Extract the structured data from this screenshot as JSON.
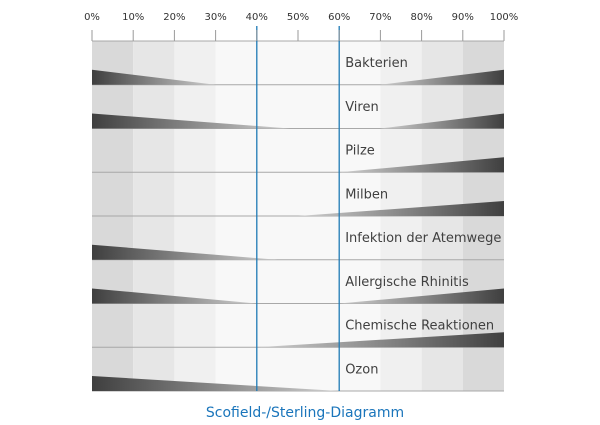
{
  "chart_data": {
    "type": "scofield-sterling",
    "title": "Scofield-/Sterling-Diagramm",
    "x_ticks": [
      "0%",
      "10%",
      "20%",
      "30%",
      "40%",
      "50%",
      "60%",
      "70%",
      "80%",
      "90%",
      "100%"
    ],
    "xlim": [
      0,
      100
    ],
    "optimal_range": [
      40,
      60
    ],
    "rows": [
      {
        "label": "Bakterien",
        "left_to": 30,
        "right_from": 70
      },
      {
        "label": "Viren",
        "left_to": 48,
        "right_from": 70
      },
      {
        "label": "Pilze",
        "left_to": 0,
        "right_from": 60
      },
      {
        "label": "Milben",
        "left_to": 0,
        "right_from": 50
      },
      {
        "label": "Infektion der Atemwege",
        "left_to": 45,
        "right_from": 100
      },
      {
        "label": "Allergische Rhinitis",
        "left_to": 40,
        "right_from": 60
      },
      {
        "label": "Chemische Reaktionen",
        "left_to": 0,
        "right_from": 40
      },
      {
        "label": "Ozon",
        "left_to": 60,
        "right_from": 100
      }
    ]
  },
  "colors": {
    "band_dark": "#d9d9d9",
    "band_mid": "#e6e6e6",
    "band_light": "#f0f0f0",
    "band_center": "#f8f8f8",
    "wedge_dark": "#3f3f3f",
    "wedge_light": "#d0d0d0",
    "optimal_line": "#1f7ab5",
    "caption": "#1a75bb"
  }
}
